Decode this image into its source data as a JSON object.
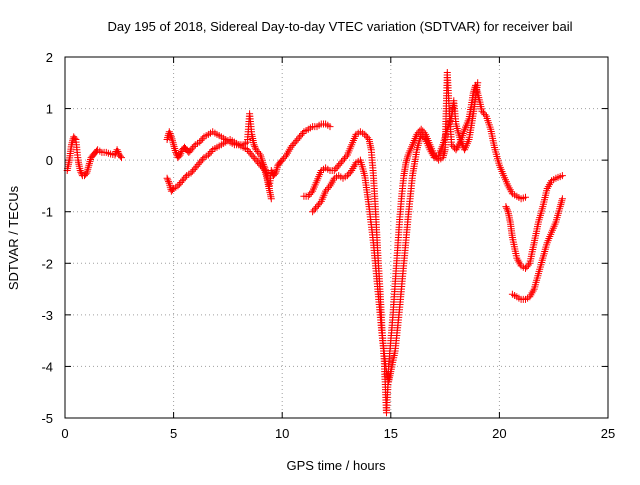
{
  "chart_data": {
    "type": "scatter",
    "title": "Day 195 of 2018, Sidereal Day-to-day VTEC variation (SDTVAR) for receiver bail",
    "xlabel": "GPS time / hours",
    "ylabel": "SDTVAR / TECUs",
    "xlim": [
      0,
      25
    ],
    "ylim": [
      -5,
      2
    ],
    "xticks": [
      0,
      5,
      10,
      15,
      20,
      25
    ],
    "yticks": [
      -5,
      -4,
      -3,
      -2,
      -1,
      0,
      1,
      2
    ],
    "grid": true,
    "marker": "plus",
    "series": [
      {
        "color": "#ff0000",
        "segments": [
          [
            [
              0.1,
              -0.2
            ],
            [
              0.2,
              0.0
            ],
            [
              0.3,
              0.3
            ],
            [
              0.4,
              0.45
            ],
            [
              0.5,
              0.4
            ],
            [
              0.55,
              0.2
            ],
            [
              0.6,
              0.0
            ],
            [
              0.7,
              -0.2
            ],
            [
              0.8,
              -0.3
            ],
            [
              0.9,
              -0.3
            ],
            [
              1.0,
              -0.25
            ],
            [
              1.1,
              -0.1
            ],
            [
              1.2,
              0.05
            ],
            [
              1.3,
              0.1
            ],
            [
              1.4,
              0.15
            ],
            [
              1.5,
              0.2
            ],
            [
              1.7,
              0.15
            ],
            [
              1.9,
              0.15
            ],
            [
              2.1,
              0.12
            ],
            [
              2.3,
              0.1
            ],
            [
              2.4,
              0.2
            ],
            [
              2.5,
              0.1
            ],
            [
              2.6,
              0.05
            ]
          ],
          [
            [
              4.7,
              0.4
            ],
            [
              4.8,
              0.55
            ],
            [
              4.9,
              0.45
            ],
            [
              5.0,
              0.3
            ],
            [
              5.1,
              0.15
            ],
            [
              5.2,
              0.05
            ],
            [
              5.3,
              0.1
            ],
            [
              5.4,
              0.2
            ],
            [
              5.5,
              0.25
            ],
            [
              5.6,
              0.2
            ],
            [
              5.7,
              0.15
            ],
            [
              5.8,
              0.2
            ],
            [
              6.0,
              0.3
            ],
            [
              6.2,
              0.35
            ],
            [
              6.4,
              0.45
            ],
            [
              6.6,
              0.5
            ],
            [
              6.8,
              0.55
            ],
            [
              7.0,
              0.5
            ],
            [
              7.2,
              0.45
            ],
            [
              7.4,
              0.4
            ],
            [
              7.6,
              0.35
            ],
            [
              7.8,
              0.3
            ],
            [
              8.0,
              0.3
            ],
            [
              8.2,
              0.3
            ],
            [
              8.4,
              0.35
            ],
            [
              8.5,
              0.9
            ],
            [
              8.6,
              0.5
            ],
            [
              8.7,
              0.3
            ],
            [
              8.8,
              0.2
            ],
            [
              9.0,
              0.1
            ],
            [
              9.1,
              -0.05
            ],
            [
              9.2,
              -0.15
            ],
            [
              9.3,
              -0.3
            ],
            [
              9.4,
              -0.55
            ],
            [
              9.5,
              -0.2
            ],
            [
              9.6,
              -0.3
            ],
            [
              9.7,
              -0.25
            ],
            [
              9.8,
              -0.1
            ],
            [
              9.9,
              -0.05
            ],
            [
              10.0,
              0.0
            ],
            [
              10.2,
              0.1
            ],
            [
              10.4,
              0.25
            ],
            [
              10.6,
              0.35
            ],
            [
              10.8,
              0.45
            ],
            [
              11.0,
              0.55
            ],
            [
              11.2,
              0.6
            ],
            [
              11.4,
              0.65
            ],
            [
              11.6,
              0.65
            ],
            [
              11.8,
              0.7
            ],
            [
              12.0,
              0.7
            ],
            [
              12.2,
              0.65
            ]
          ],
          [
            [
              4.7,
              -0.35
            ],
            [
              4.8,
              -0.45
            ],
            [
              4.9,
              -0.6
            ],
            [
              5.0,
              -0.55
            ],
            [
              5.2,
              -0.5
            ],
            [
              5.4,
              -0.4
            ],
            [
              5.6,
              -0.3
            ],
            [
              5.8,
              -0.25
            ],
            [
              6.0,
              -0.15
            ],
            [
              6.2,
              -0.05
            ],
            [
              6.4,
              0.05
            ],
            [
              6.6,
              0.1
            ],
            [
              6.8,
              0.2
            ],
            [
              7.0,
              0.25
            ],
            [
              7.2,
              0.3
            ],
            [
              7.4,
              0.35
            ],
            [
              7.6,
              0.4
            ],
            [
              7.8,
              0.35
            ],
            [
              8.0,
              0.3
            ],
            [
              8.2,
              0.25
            ],
            [
              8.4,
              0.2
            ],
            [
              8.6,
              0.1
            ],
            [
              8.8,
              0.0
            ],
            [
              9.0,
              -0.1
            ],
            [
              9.2,
              -0.2
            ],
            [
              9.3,
              -0.35
            ],
            [
              9.4,
              -0.55
            ],
            [
              9.5,
              -0.75
            ]
          ],
          [
            [
              11.0,
              -0.7
            ],
            [
              11.2,
              -0.7
            ],
            [
              11.4,
              -0.6
            ],
            [
              11.6,
              -0.4
            ],
            [
              11.8,
              -0.2
            ],
            [
              12.0,
              -0.15
            ],
            [
              12.2,
              -0.2
            ],
            [
              12.4,
              -0.2
            ],
            [
              12.6,
              -0.1
            ],
            [
              12.8,
              0.0
            ],
            [
              13.0,
              0.1
            ],
            [
              13.2,
              0.3
            ],
            [
              13.4,
              0.5
            ],
            [
              13.6,
              0.55
            ],
            [
              13.8,
              0.5
            ],
            [
              14.0,
              0.4
            ],
            [
              14.1,
              0.2
            ],
            [
              14.2,
              -0.3
            ],
            [
              14.3,
              -1.0
            ],
            [
              14.4,
              -1.8
            ],
            [
              14.5,
              -2.5
            ],
            [
              14.6,
              -3.3
            ],
            [
              14.7,
              -3.9
            ],
            [
              14.75,
              -4.4
            ],
            [
              14.8,
              -4.9
            ],
            [
              14.85,
              -4.5
            ],
            [
              14.9,
              -4.0
            ],
            [
              15.0,
              -3.5
            ],
            [
              15.1,
              -3.0
            ],
            [
              15.2,
              -2.4
            ],
            [
              15.3,
              -1.8
            ],
            [
              15.4,
              -1.2
            ],
            [
              15.5,
              -0.7
            ],
            [
              15.6,
              -0.3
            ],
            [
              15.7,
              -0.05
            ],
            [
              15.8,
              0.1
            ],
            [
              16.0,
              0.3
            ],
            [
              16.2,
              0.5
            ],
            [
              16.4,
              0.6
            ],
            [
              16.6,
              0.5
            ],
            [
              16.8,
              0.3
            ],
            [
              17.0,
              0.1
            ],
            [
              17.2,
              0.0
            ],
            [
              17.4,
              0.05
            ],
            [
              17.5,
              0.2
            ],
            [
              17.6,
              1.7
            ],
            [
              17.7,
              0.9
            ],
            [
              17.8,
              0.3
            ],
            [
              18.0,
              0.2
            ],
            [
              18.2,
              0.35
            ],
            [
              18.4,
              0.6
            ],
            [
              18.6,
              0.8
            ],
            [
              18.8,
              1.3
            ],
            [
              18.9,
              1.45
            ],
            [
              19.0,
              1.3
            ],
            [
              19.2,
              0.95
            ],
            [
              19.4,
              0.85
            ],
            [
              19.6,
              0.6
            ],
            [
              19.8,
              0.2
            ],
            [
              20.0,
              -0.1
            ],
            [
              20.2,
              -0.3
            ],
            [
              20.4,
              -0.5
            ],
            [
              20.6,
              -0.65
            ],
            [
              20.8,
              -0.7
            ],
            [
              21.0,
              -0.75
            ],
            [
              21.2,
              -0.72
            ]
          ],
          [
            [
              11.4,
              -1.0
            ],
            [
              11.6,
              -0.9
            ],
            [
              11.8,
              -0.8
            ],
            [
              12.0,
              -0.6
            ],
            [
              12.2,
              -0.5
            ],
            [
              12.4,
              -0.35
            ],
            [
              12.6,
              -0.3
            ],
            [
              12.8,
              -0.35
            ],
            [
              13.0,
              -0.3
            ],
            [
              13.2,
              -0.2
            ],
            [
              13.4,
              -0.05
            ],
            [
              13.6,
              0.0
            ],
            [
              13.8,
              -0.3
            ],
            [
              14.0,
              -0.9
            ],
            [
              14.2,
              -1.6
            ],
            [
              14.4,
              -2.5
            ],
            [
              14.6,
              -3.4
            ],
            [
              14.8,
              -4.1
            ],
            [
              14.9,
              -4.3
            ],
            [
              15.0,
              -4.1
            ],
            [
              15.2,
              -3.7
            ],
            [
              15.4,
              -2.9
            ],
            [
              15.6,
              -2.0
            ],
            [
              15.8,
              -1.1
            ],
            [
              16.0,
              -0.3
            ],
            [
              16.2,
              0.2
            ],
            [
              16.4,
              0.5
            ],
            [
              16.6,
              0.4
            ],
            [
              16.8,
              0.2
            ],
            [
              17.0,
              0.05
            ],
            [
              17.2,
              0.1
            ],
            [
              17.4,
              0.3
            ],
            [
              17.6,
              0.6
            ],
            [
              17.8,
              0.85
            ],
            [
              17.9,
              1.15
            ],
            [
              18.0,
              0.7
            ],
            [
              18.2,
              0.4
            ],
            [
              18.4,
              0.2
            ],
            [
              18.6,
              0.4
            ],
            [
              18.8,
              0.9
            ],
            [
              19.0,
              1.5
            ]
          ],
          [
            [
              20.3,
              -0.9
            ],
            [
              20.4,
              -1.0
            ],
            [
              20.5,
              -1.2
            ],
            [
              20.6,
              -1.5
            ],
            [
              20.8,
              -1.9
            ],
            [
              21.0,
              -2.05
            ],
            [
              21.2,
              -2.1
            ],
            [
              21.4,
              -2.0
            ],
            [
              21.6,
              -1.6
            ],
            [
              21.8,
              -1.2
            ],
            [
              22.0,
              -0.9
            ],
            [
              22.2,
              -0.55
            ],
            [
              22.4,
              -0.4
            ],
            [
              22.6,
              -0.35
            ],
            [
              22.8,
              -0.32
            ],
            [
              22.9,
              -0.3
            ]
          ],
          [
            [
              20.6,
              -2.6
            ],
            [
              20.8,
              -2.65
            ],
            [
              21.0,
              -2.7
            ],
            [
              21.2,
              -2.7
            ],
            [
              21.4,
              -2.65
            ],
            [
              21.6,
              -2.5
            ],
            [
              21.8,
              -2.2
            ],
            [
              22.0,
              -1.9
            ],
            [
              22.2,
              -1.6
            ],
            [
              22.4,
              -1.4
            ],
            [
              22.6,
              -1.2
            ],
            [
              22.8,
              -0.9
            ],
            [
              22.9,
              -0.75
            ]
          ]
        ]
      }
    ]
  }
}
